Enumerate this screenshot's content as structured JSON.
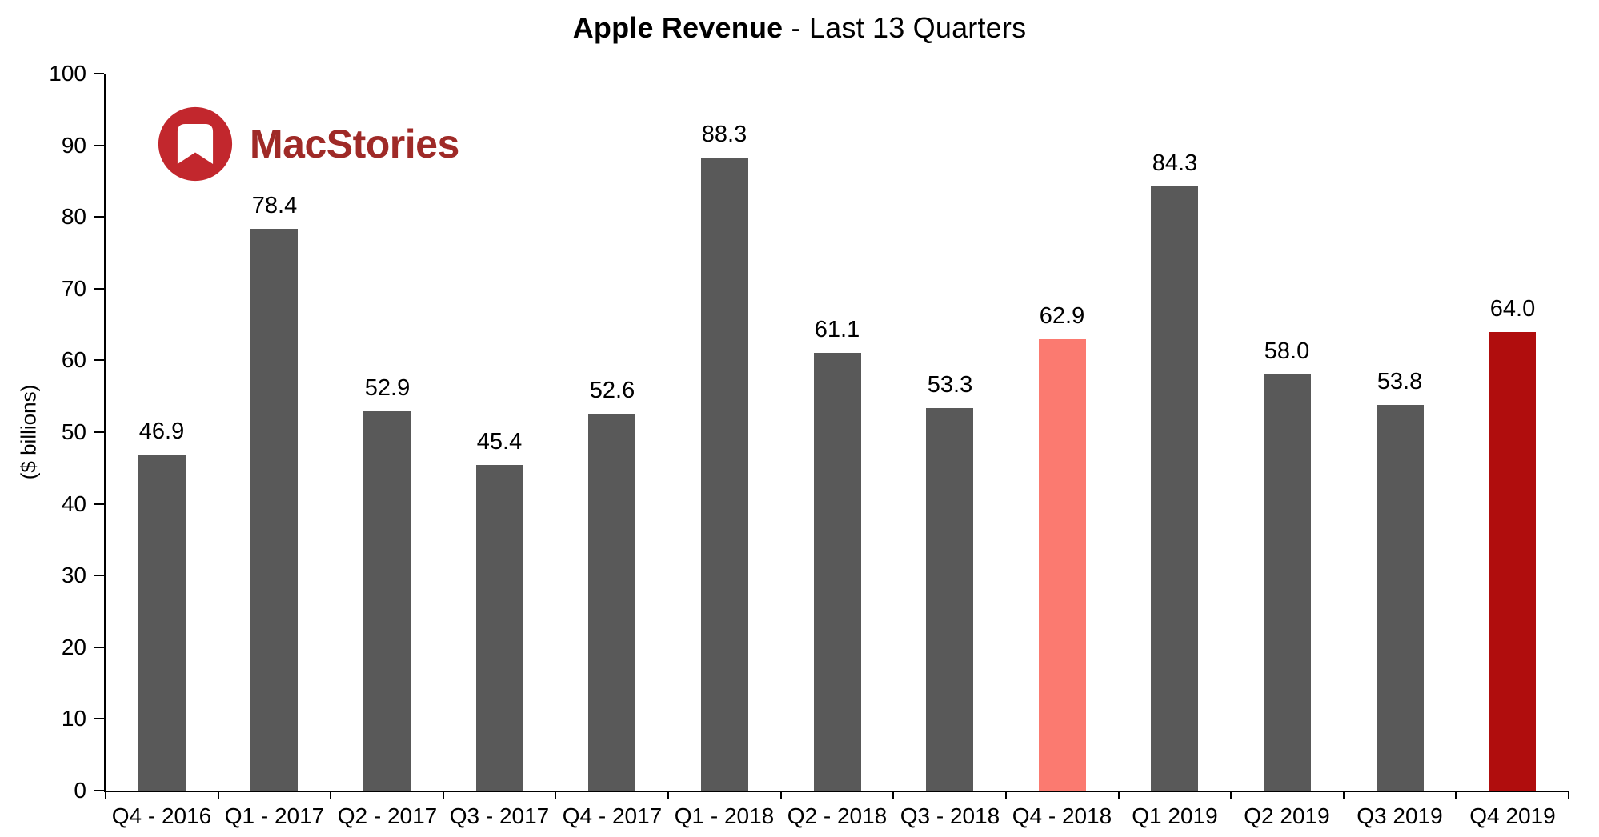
{
  "title": {
    "bold": "Apple Revenue",
    "rest": " - Last 13 Quarters"
  },
  "logo": {
    "text": "MacStories"
  },
  "colors": {
    "logo_circle": "#c2272d",
    "logo_text": "#9f2a27",
    "axis": "#000000",
    "text": "#000000",
    "bar_default": "#595959",
    "bar_highlight": "#fb7a70",
    "bar_emphasis": "#b00d0d"
  },
  "chart_data": {
    "type": "bar",
    "title": "Apple Revenue - Last 13 Quarters",
    "xlabel": "",
    "ylabel": "($ billions)",
    "ylim": [
      0,
      100
    ],
    "ytick_step": 10,
    "grid": false,
    "legend": "none",
    "categories": [
      "Q4 - 2016",
      "Q1 - 2017",
      "Q2 - 2017",
      "Q3 - 2017",
      "Q4 - 2017",
      "Q1 - 2018",
      "Q2 - 2018",
      "Q3 - 2018",
      "Q4 - 2018",
      "Q1 2019",
      "Q2 2019",
      "Q3 2019",
      "Q4 2019"
    ],
    "values": [
      46.9,
      78.4,
      52.9,
      45.4,
      52.6,
      88.3,
      61.1,
      53.3,
      62.9,
      84.3,
      58.0,
      53.8,
      64.0
    ],
    "bar_colors": [
      "#595959",
      "#595959",
      "#595959",
      "#595959",
      "#595959",
      "#595959",
      "#595959",
      "#595959",
      "#fb7a70",
      "#595959",
      "#595959",
      "#595959",
      "#b00d0d"
    ],
    "value_label_decimals": 1
  }
}
